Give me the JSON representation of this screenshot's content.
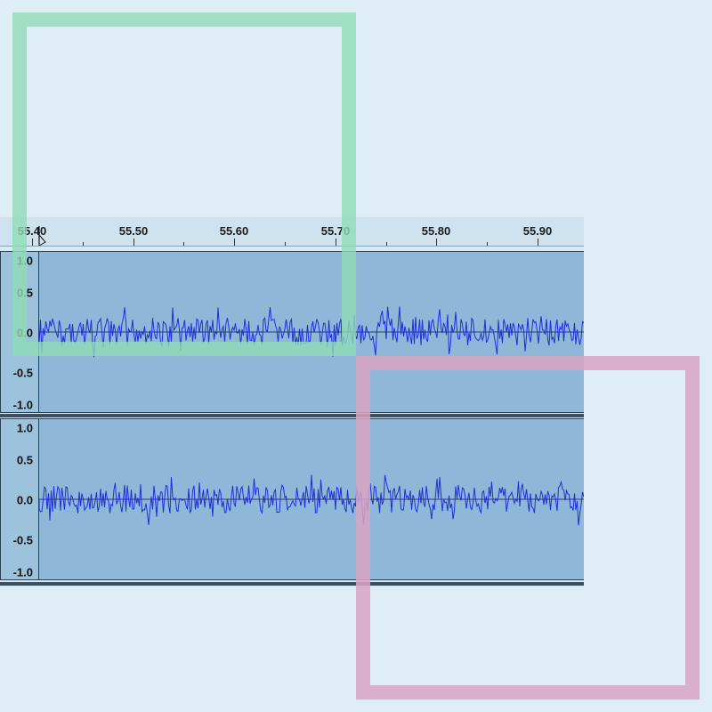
{
  "ruler": {
    "ticks": [
      "55.40",
      "55.50",
      "55.60",
      "55.70",
      "55.80",
      "55.90"
    ]
  },
  "tracks": [
    {
      "scale": [
        "1.0",
        "0.5",
        "0.0",
        "-0.5",
        "-1.0"
      ]
    },
    {
      "scale": [
        "1.0",
        "0.5",
        "0.0",
        "-0.5",
        "-1.0"
      ]
    }
  ],
  "colors": {
    "waveform": "#1f2fd8",
    "green_box": "#8fdcb6",
    "pink_box": "#d9a3c4"
  }
}
